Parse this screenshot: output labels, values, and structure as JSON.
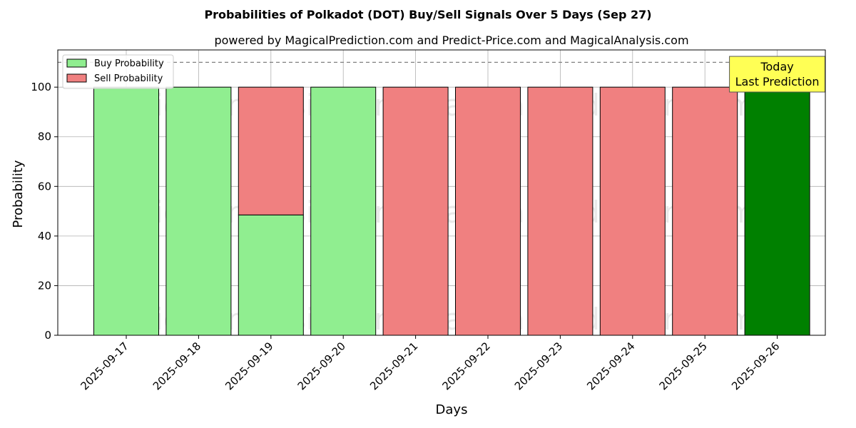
{
  "colors": {
    "buy": "#90ee90",
    "sell": "#f08080",
    "today": "#008000",
    "annotation_bg": "#ffff55",
    "grid": "#b0b0b0",
    "threshold": "#808080"
  },
  "chart_data": {
    "type": "bar",
    "title": "Probabilities of Polkadot (DOT) Buy/Sell Signals Over 5 Days (Sep 27)",
    "subtitle": "powered by MagicalPrediction.com and Predict-Price.com and MagicalAnalysis.com",
    "xlabel": "Days",
    "ylabel": "Probability",
    "ylim": [
      0,
      115
    ],
    "yticks": [
      0,
      20,
      40,
      60,
      80,
      100
    ],
    "threshold_line": 110,
    "grid": true,
    "legend_position": "top-left",
    "categories": [
      "2025-09-17",
      "2025-09-18",
      "2025-09-19",
      "2025-09-20",
      "2025-09-21",
      "2025-09-22",
      "2025-09-23",
      "2025-09-24",
      "2025-09-25",
      "2025-09-26"
    ],
    "series": [
      {
        "name": "Buy Probability",
        "values": [
          100,
          100,
          48.5,
          100,
          0,
          0,
          0,
          0,
          0,
          100
        ]
      },
      {
        "name": "Sell Probability",
        "values": [
          0,
          0,
          51.5,
          0,
          100,
          100,
          100,
          100,
          100,
          0
        ]
      }
    ],
    "highlight_index": 9,
    "annotation": {
      "line1": "Today",
      "line2": "Last Prediction"
    },
    "watermarks": [
      "MagicalAnalysis.com",
      "MagicalPrediction.com"
    ]
  }
}
